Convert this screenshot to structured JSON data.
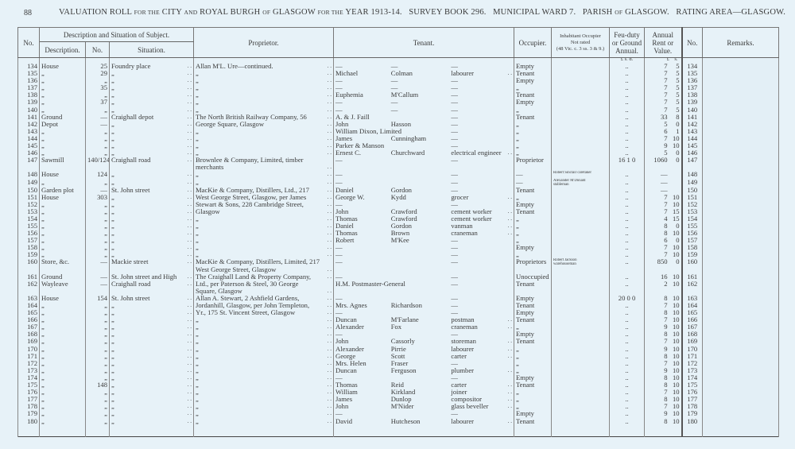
{
  "page_number": "88",
  "title": {
    "p1": "VALUATION ROLL",
    "s1": "FOR THE",
    "p2": "CITY",
    "s2": "AND",
    "p3": "ROYAL BURGH",
    "s3": "OF",
    "p4": "GLASGOW",
    "s4": "FOR THE",
    "p5": "YEAR 1913-14.",
    "survey": "SURVEY BOOK 296.",
    "ward": "MUNICIPAL WARD 7.",
    "parish": "PARISH",
    "parish_of": "OF",
    "parish_name": "GLASGOW.",
    "rating": "RATING AREA—GLASGOW."
  },
  "headers": {
    "no": "No.",
    "desc_group": "Description and Situation of Subject.",
    "description": "Description.",
    "sub_no": "No.",
    "situation": "Situation.",
    "proprietor": "Proprietor.",
    "tenant": "Tenant.",
    "occupier": "Occupier.",
    "inhabitant": "Inhabitant Occupier\nNot rated\n(48 Vic. c. 3 ss. 3 & 9.)",
    "feu": "Feu-duty\nor Ground\nAnnual.",
    "annual": "Annual\nRent or\nValue.",
    "no_right": "No.",
    "remarks": "Remarks.",
    "feu_units": "£  s.  d.",
    "annual_units": "£    s."
  },
  "rows": [
    {
      "no": "134",
      "desc": "House",
      "num": "25",
      "sit": "Foundry place",
      "prop": "Allan M'L. Ure—continued.",
      "tf": "—",
      "ts": "—",
      "to": "—",
      "occ": "Empty",
      "feu": "..",
      "rent": [
        "7",
        "5"
      ]
    },
    {
      "no": "135",
      "desc": "„",
      "num": "29",
      "sit": "„",
      "prop": "„",
      "tf": "Michael",
      "ts": "Colman",
      "to": "labourer",
      "occ": "Tenant",
      "feu": "..",
      "rent": [
        "7",
        "5"
      ]
    },
    {
      "no": "136",
      "desc": "„",
      "num": "„",
      "sit": "„",
      "prop": "„",
      "tf": "—",
      "ts": "—",
      "to": "—",
      "occ": "Empty",
      "feu": "..",
      "rent": [
        "7",
        "5"
      ]
    },
    {
      "no": "137",
      "desc": "„",
      "num": "35",
      "sit": "„",
      "prop": "„",
      "tf": "—",
      "ts": "—",
      "to": "—",
      "occ": "„",
      "feu": "..",
      "rent": [
        "7",
        "5"
      ]
    },
    {
      "no": "138",
      "desc": "„",
      "num": "„",
      "sit": "„",
      "prop": "„",
      "tf": "Euphemia",
      "ts": "M'Callum",
      "to": "—",
      "occ": "Tenant",
      "feu": "..",
      "rent": [
        "7",
        "5"
      ]
    },
    {
      "no": "139",
      "desc": "„",
      "num": "37",
      "sit": "„",
      "prop": "„",
      "tf": "—",
      "ts": "—",
      "to": "—",
      "occ": "Empty",
      "feu": "..",
      "rent": [
        "7",
        "5"
      ]
    },
    {
      "no": "140",
      "desc": "„",
      "num": "„",
      "sit": "„",
      "prop": "„",
      "tf": "—",
      "ts": "—",
      "to": "—",
      "occ": "„",
      "feu": "..",
      "rent": [
        "7",
        "5"
      ]
    },
    {
      "no": "141",
      "desc": "Ground",
      "num": "—",
      "sit": "Craighall depot",
      "prop": "The North British Railway Company, 56",
      "tf": "A. & J. Faill",
      "ts": "",
      "to": "—",
      "occ": "Tenant",
      "feu": "..",
      "rent": [
        "33",
        "8"
      ]
    },
    {
      "no": "142",
      "desc": "Depot",
      "num": "—",
      "sit": "„",
      "prop": "   George Square, Glasgow",
      "tf": "John",
      "ts": "Hasson",
      "to": "—",
      "occ": "„",
      "feu": "..",
      "rent": [
        "5",
        "0"
      ]
    },
    {
      "no": "143",
      "desc": "„",
      "num": "„",
      "sit": "„",
      "prop": "„",
      "tf": "William Dixon, Limited",
      "ts": "",
      "to": "—",
      "occ": "„",
      "feu": "..",
      "rent": [
        "6",
        "1"
      ]
    },
    {
      "no": "144",
      "desc": "„",
      "num": "„",
      "sit": "„",
      "prop": "„",
      "tf": "James",
      "ts": "Cunningham",
      "to": "—",
      "occ": "„",
      "feu": "..",
      "rent": [
        "7",
        "10"
      ]
    },
    {
      "no": "145",
      "desc": "„",
      "num": "„",
      "sit": "„",
      "prop": "„",
      "tf": "Parker & Manson",
      "ts": "",
      "to": "—",
      "occ": "„",
      "feu": "..",
      "rent": [
        "9",
        "10"
      ]
    },
    {
      "no": "146",
      "desc": "„",
      "num": "„",
      "sit": "„",
      "prop": "„",
      "tf": "Ernest C.",
      "ts": "Churchward",
      "to": "electrical engineer",
      "occ": "„",
      "feu": "..",
      "rent": [
        "5",
        "0"
      ]
    },
    {
      "no": "147",
      "desc": "Sawmill",
      "num": "140/124",
      "sit": "Craighall road",
      "prop": "Brownlee & Company, Limited, timber\n   merchants",
      "tf": "—",
      "ts": "",
      "to": "—",
      "occ": "Proprietor",
      "feu": "16  1  0",
      "rent": [
        "1060",
        "0"
      ]
    },
    {
      "no": "148",
      "desc": "House",
      "num": "124",
      "sit": "„",
      "prop": "„",
      "tf": "—",
      "ts": "",
      "to": "—",
      "occ": "—",
      "inh": "Robert Sinclair      caretaker",
      "feu": "..",
      "rent": [
        "—",
        ""
      ]
    },
    {
      "no": "149",
      "desc": "„",
      "num": "„",
      "sit": "„",
      "prop": "„",
      "tf": "—",
      "ts": "",
      "to": "—",
      "occ": "—",
      "inh": "Alexander M'Donald\n    stableman",
      "feu": "..",
      "rent": [
        "—",
        ""
      ]
    },
    {
      "no": "150",
      "desc": "Garden plot",
      "num": "—",
      "sit": "St. John street",
      "prop": "MacKie & Company, Distillers, Ltd., 217",
      "tf": "Daniel",
      "ts": "Gordon",
      "to": "—",
      "occ": "Tenant",
      "feu": "..",
      "rent": [
        "—",
        ""
      ]
    },
    {
      "no": "151",
      "desc": "House",
      "num": "303",
      "sit": "„",
      "prop": "   West George Street, Glasgow, per James",
      "tf": "George W.",
      "ts": "Kydd",
      "to": "grocer",
      "occ": "„",
      "feu": "..",
      "rent": [
        "7",
        "10"
      ]
    },
    {
      "no": "152",
      "desc": "„",
      "num": "„",
      "sit": "„",
      "prop": "   Stewart & Sons, 228 Cambridge Street,",
      "tf": "—",
      "ts": "",
      "to": "—",
      "occ": "Empty",
      "feu": "..",
      "rent": [
        "7",
        "10"
      ]
    },
    {
      "no": "153",
      "desc": "„",
      "num": "„",
      "sit": "„",
      "prop": "   Glasgow",
      "tf": "John",
      "ts": "Crawford",
      "to": "cement worker",
      "occ": "Tenant",
      "feu": "..",
      "rent": [
        "7",
        "15"
      ]
    },
    {
      "no": "154",
      "desc": "„",
      "num": "„",
      "sit": "„",
      "prop": "„",
      "tf": "Thomas",
      "ts": "Crawford",
      "to": "cement worker",
      "occ": "„",
      "feu": "..",
      "rent": [
        "4",
        "15"
      ]
    },
    {
      "no": "155",
      "desc": "„",
      "num": "„",
      "sit": "„",
      "prop": "„",
      "tf": "Daniel",
      "ts": "Gordon",
      "to": "vanman",
      "occ": "„",
      "feu": "..",
      "rent": [
        "8",
        "0"
      ]
    },
    {
      "no": "156",
      "desc": "„",
      "num": "„",
      "sit": "„",
      "prop": "„",
      "tf": "Thomas",
      "ts": "Brown",
      "to": "craneman",
      "occ": "„",
      "feu": "..",
      "rent": [
        "8",
        "10"
      ]
    },
    {
      "no": "157",
      "desc": "„",
      "num": "„",
      "sit": "„",
      "prop": "„",
      "tf": "Robert",
      "ts": "M'Kee",
      "to": "—",
      "occ": "„",
      "feu": "..",
      "rent": [
        "6",
        "0"
      ]
    },
    {
      "no": "158",
      "desc": "„",
      "num": "„",
      "sit": "„",
      "prop": "„",
      "tf": "—",
      "ts": "",
      "to": "—",
      "occ": "Empty",
      "feu": "..",
      "rent": [
        "7",
        "10"
      ]
    },
    {
      "no": "159",
      "desc": "„",
      "num": "„",
      "sit": "„",
      "prop": "„",
      "tf": "—",
      "ts": "",
      "to": "—",
      "occ": "„",
      "feu": "..",
      "rent": [
        "7",
        "10"
      ]
    },
    {
      "no": "160",
      "desc": "Store, &c.",
      "num": "—",
      "sit": "Mackie street",
      "prop": "MacKie & Company, Distillers, Limited, 217\n   West George Street, Glasgow",
      "tf": "—",
      "ts": "",
      "to": "—",
      "occ": "Proprietors",
      "inh": "Robert Jackson\nwarehouseman",
      "feu": "..",
      "rent": [
        "850",
        "0"
      ]
    },
    {
      "no": "161",
      "desc": "Ground",
      "num": "—",
      "sit": "St. John street and High",
      "prop": "The Craighall Land & Property Company,",
      "tf": "—",
      "ts": "",
      "to": "—",
      "occ": "Unoccupied",
      "feu": "..",
      "rent": [
        "16",
        "10"
      ]
    },
    {
      "no": "162",
      "desc": "Wayleave",
      "num": "—",
      "sit": "   Craighall road",
      "prop": "   Ltd., per Paterson & Steel, 30 George\n   Square, Glasgow",
      "tf": "H.M. Postmaster-General",
      "ts": "",
      "to": "—",
      "occ": "Tenant",
      "feu": "..",
      "rent": [
        "2",
        "10"
      ]
    },
    {
      "no": "163",
      "desc": "House",
      "num": "154",
      "sit": "St. John street",
      "prop": "Allan A. Stewart, 2 Ashfield Gardens,",
      "tf": "—",
      "ts": "",
      "to": "—",
      "occ": "Empty",
      "feu": "20  0  0",
      "rent": [
        "8",
        "10"
      ]
    },
    {
      "no": "164",
      "desc": "„",
      "num": "„",
      "sit": "„",
      "prop": "   Jordanhill, Glasgow, per John Templeton,",
      "tf": "Mrs. Agnes",
      "ts": "Richardson",
      "to": "—",
      "occ": "Tenant",
      "feu": "..",
      "rent": [
        "7",
        "10"
      ]
    },
    {
      "no": "165",
      "desc": "„",
      "num": "„",
      "sit": "„",
      "prop": "   Yr., 175 St. Vincent Street, Glasgow",
      "tf": "—",
      "ts": "",
      "to": "—",
      "occ": "Empty",
      "feu": "..",
      "rent": [
        "8",
        "10"
      ]
    },
    {
      "no": "166",
      "desc": "„",
      "num": "„",
      "sit": "„",
      "prop": "„",
      "tf": "Duncan",
      "ts": "M'Farlane",
      "to": "postman",
      "occ": "Tenant",
      "feu": "..",
      "rent": [
        "7",
        "10"
      ]
    },
    {
      "no": "167",
      "desc": "„",
      "num": "„",
      "sit": "„",
      "prop": "„",
      "tf": "Alexander",
      "ts": "Fox",
      "to": "craneman",
      "occ": "„",
      "feu": "..",
      "rent": [
        "9",
        "10"
      ]
    },
    {
      "no": "168",
      "desc": "„",
      "num": "„",
      "sit": "„",
      "prop": "„",
      "tf": "—",
      "ts": "",
      "to": "—",
      "occ": "Empty",
      "feu": "..",
      "rent": [
        "8",
        "10"
      ]
    },
    {
      "no": "169",
      "desc": "„",
      "num": "„",
      "sit": "„",
      "prop": "„",
      "tf": "John",
      "ts": "Cassorly",
      "to": "storeman",
      "occ": "Tenant",
      "feu": "..",
      "rent": [
        "7",
        "10"
      ]
    },
    {
      "no": "170",
      "desc": "„",
      "num": "„",
      "sit": "„",
      "prop": "„",
      "tf": "Alexander",
      "ts": "Pirrie",
      "to": "labourer",
      "occ": "„",
      "feu": "..",
      "rent": [
        "9",
        "10"
      ]
    },
    {
      "no": "171",
      "desc": "„",
      "num": "„",
      "sit": "„",
      "prop": "„",
      "tf": "George",
      "ts": "Scott",
      "to": "carter",
      "occ": "„",
      "feu": "..",
      "rent": [
        "8",
        "10"
      ]
    },
    {
      "no": "172",
      "desc": "„",
      "num": "„",
      "sit": "„",
      "prop": "„",
      "tf": "Mrs. Helen",
      "ts": "Fraser",
      "to": "—",
      "occ": "„",
      "feu": "..",
      "rent": [
        "7",
        "10"
      ]
    },
    {
      "no": "173",
      "desc": "„",
      "num": "„",
      "sit": "„",
      "prop": "„",
      "tf": "Duncan",
      "ts": "Ferguson",
      "to": "plumber",
      "occ": "„",
      "feu": "..",
      "rent": [
        "9",
        "10"
      ]
    },
    {
      "no": "174",
      "desc": "„",
      "num": "„",
      "sit": "„",
      "prop": "„",
      "tf": "—",
      "ts": "",
      "to": "—",
      "occ": "Empty",
      "feu": "..",
      "rent": [
        "8",
        "10"
      ]
    },
    {
      "no": "175",
      "desc": "„",
      "num": "148",
      "sit": "„",
      "prop": "„",
      "tf": "Thomas",
      "ts": "Reid",
      "to": "carter",
      "occ": "Tenant",
      "feu": "..",
      "rent": [
        "8",
        "10"
      ]
    },
    {
      "no": "176",
      "desc": "„",
      "num": "„",
      "sit": "„",
      "prop": "„",
      "tf": "William",
      "ts": "Kirkland",
      "to": "joiner",
      "occ": "„",
      "feu": "..",
      "rent": [
        "7",
        "10"
      ]
    },
    {
      "no": "177",
      "desc": "„",
      "num": "„",
      "sit": "„",
      "prop": "„",
      "tf": "James",
      "ts": "Dunlop",
      "to": "compositor",
      "occ": "„",
      "feu": "..",
      "rent": [
        "8",
        "10"
      ]
    },
    {
      "no": "178",
      "desc": "„",
      "num": "„",
      "sit": "„",
      "prop": "„",
      "tf": "John",
      "ts": "M'Nider",
      "to": "glass beveller",
      "occ": "„",
      "feu": "..",
      "rent": [
        "7",
        "10"
      ]
    },
    {
      "no": "179",
      "desc": "„",
      "num": "„",
      "sit": "„",
      "prop": "„",
      "tf": "—",
      "ts": "",
      "to": "—",
      "occ": "Empty",
      "feu": "..",
      "rent": [
        "9",
        "10"
      ]
    },
    {
      "no": "180",
      "desc": "„",
      "num": "„",
      "sit": "„",
      "prop": "„",
      "tf": "David",
      "ts": "Hutcheson",
      "to": "labourer",
      "occ": "Tenant",
      "feu": "..",
      "rent": [
        "8",
        "10"
      ]
    }
  ]
}
